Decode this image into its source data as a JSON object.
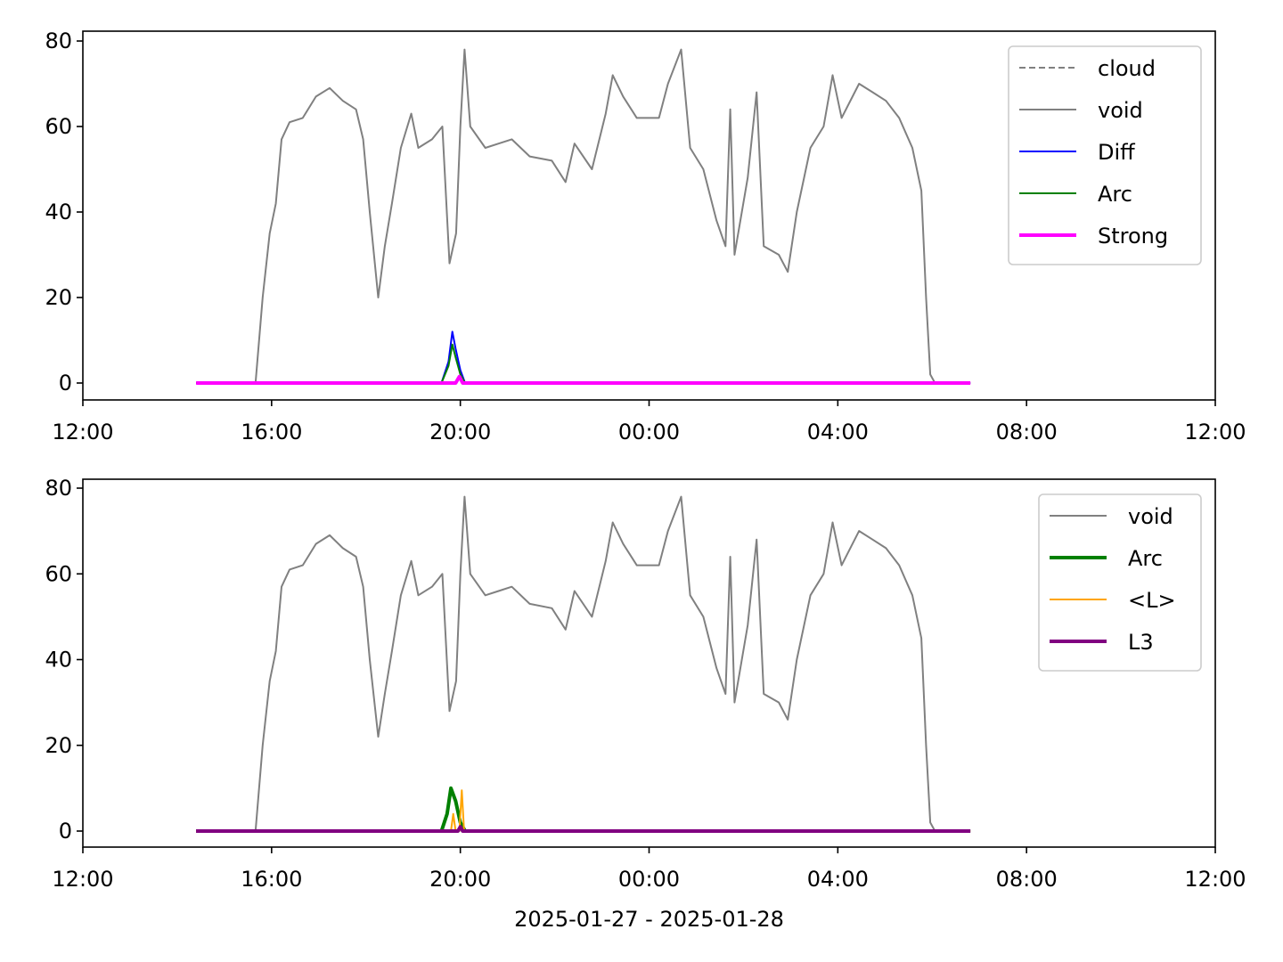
{
  "chart_data": [
    {
      "type": "line",
      "xlim": [
        0,
        24
      ],
      "xticks": [
        {
          "value": 0,
          "label": "12:00"
        },
        {
          "value": 4,
          "label": "16:00"
        },
        {
          "value": 8,
          "label": "20:00"
        },
        {
          "value": 12,
          "label": "00:00"
        },
        {
          "value": 16,
          "label": "04:00"
        },
        {
          "value": 20,
          "label": "08:00"
        },
        {
          "value": 24,
          "label": "12:00"
        }
      ],
      "ylim": [
        -3.96,
        82.3
      ],
      "yticks": [
        0,
        20,
        40,
        60,
        80
      ],
      "legend": "upper right",
      "series": [
        {
          "name": "cloud",
          "color": "#808080",
          "linewidth": 1,
          "linestyle": "dashed",
          "x": [],
          "values": []
        },
        {
          "name": "void",
          "color": "#808080",
          "linewidth": 1,
          "linestyle": "solid",
          "x": [
            2.4,
            3.66,
            3.81,
            3.96,
            4.09,
            4.21,
            4.38,
            4.66,
            4.94,
            5.23,
            5.51,
            5.79,
            5.94,
            6.08,
            6.26,
            6.4,
            6.55,
            6.74,
            6.96,
            7.11,
            7.4,
            7.62,
            7.77,
            7.91,
            8.0,
            8.09,
            8.21,
            8.53,
            8.81,
            9.09,
            9.47,
            9.94,
            10.23,
            10.42,
            10.79,
            11.08,
            11.23,
            11.45,
            11.74,
            12.21,
            12.4,
            12.68,
            12.87,
            13.15,
            13.43,
            13.62,
            13.72,
            13.81,
            14.09,
            14.28,
            14.43,
            14.75,
            14.94,
            15.13,
            15.42,
            15.7,
            15.89,
            16.08,
            16.45,
            16.74,
            17.02,
            17.3,
            17.58,
            17.77,
            17.87,
            17.96,
            18.06,
            18.81
          ],
          "values": [
            0,
            0,
            20,
            35,
            42,
            57,
            61,
            62,
            67,
            69,
            66,
            64,
            57,
            40,
            20,
            32,
            42,
            55,
            63,
            55,
            57,
            60,
            28,
            35,
            60,
            78,
            60,
            55,
            56,
            57,
            53,
            52,
            47,
            56,
            50,
            63,
            72,
            67,
            62,
            62,
            70,
            78,
            55,
            50,
            38,
            32,
            64,
            30,
            48,
            68,
            32,
            30,
            26,
            40,
            55,
            60,
            72,
            62,
            70,
            68,
            66,
            62,
            55,
            45,
            20,
            2,
            0,
            0
          ]
        },
        {
          "name": "Diff",
          "color": "#0000ff",
          "linewidth": 1,
          "linestyle": "solid",
          "x": [
            2.4,
            7.6,
            7.75,
            7.83,
            7.9,
            8.0,
            8.1,
            18.81
          ],
          "values": [
            0,
            0,
            5,
            12,
            8,
            3,
            0,
            0
          ]
        },
        {
          "name": "Arc",
          "color": "#008000",
          "linewidth": 1,
          "linestyle": "solid",
          "x": [
            2.4,
            7.6,
            7.75,
            7.83,
            7.9,
            8.0,
            8.1,
            18.81
          ],
          "values": [
            0,
            0,
            4,
            9,
            6,
            2,
            0,
            0
          ]
        },
        {
          "name": "Strong",
          "color": "#ff00ff",
          "linewidth": 2,
          "linestyle": "solid",
          "x": [
            2.4,
            7.9,
            7.98,
            8.05,
            18.81
          ],
          "values": [
            0,
            0,
            1.5,
            0,
            0
          ]
        }
      ]
    },
    {
      "type": "line",
      "xlabel": "2025-01-27 - 2025-01-28",
      "xlim": [
        0,
        24
      ],
      "xticks": [
        {
          "value": 0,
          "label": "12:00"
        },
        {
          "value": 4,
          "label": "16:00"
        },
        {
          "value": 8,
          "label": "20:00"
        },
        {
          "value": 12,
          "label": "00:00"
        },
        {
          "value": 16,
          "label": "04:00"
        },
        {
          "value": 20,
          "label": "08:00"
        },
        {
          "value": 24,
          "label": "12:00"
        }
      ],
      "ylim": [
        -3.74,
        82.08
      ],
      "yticks": [
        0,
        20,
        40,
        60,
        80
      ],
      "legend": "upper right",
      "series": [
        {
          "name": "void",
          "color": "#808080",
          "linewidth": 1,
          "linestyle": "solid",
          "x": [
            2.4,
            3.66,
            3.81,
            3.96,
            4.09,
            4.21,
            4.38,
            4.66,
            4.94,
            5.23,
            5.51,
            5.79,
            5.94,
            6.08,
            6.26,
            6.4,
            6.55,
            6.74,
            6.96,
            7.11,
            7.4,
            7.62,
            7.77,
            7.91,
            8.0,
            8.09,
            8.21,
            8.53,
            8.81,
            9.09,
            9.47,
            9.94,
            10.23,
            10.42,
            10.79,
            11.08,
            11.23,
            11.45,
            11.74,
            12.21,
            12.4,
            12.68,
            12.87,
            13.15,
            13.43,
            13.62,
            13.72,
            13.81,
            14.09,
            14.28,
            14.43,
            14.75,
            14.94,
            15.13,
            15.42,
            15.7,
            15.89,
            16.08,
            16.45,
            16.74,
            17.02,
            17.3,
            17.58,
            17.77,
            17.87,
            17.96,
            18.06,
            18.81
          ],
          "values": [
            0,
            0,
            20,
            35,
            42,
            57,
            61,
            62,
            67,
            69,
            66,
            64,
            57,
            40,
            22,
            32,
            42,
            55,
            63,
            55,
            57,
            60,
            28,
            35,
            60,
            78,
            60,
            55,
            56,
            57,
            53,
            52,
            47,
            56,
            50,
            63,
            72,
            67,
            62,
            62,
            70,
            78,
            55,
            50,
            38,
            32,
            64,
            30,
            48,
            68,
            32,
            30,
            26,
            40,
            55,
            60,
            72,
            62,
            70,
            68,
            66,
            62,
            55,
            45,
            20,
            2,
            0,
            0
          ]
        },
        {
          "name": "Arc",
          "color": "#008000",
          "linewidth": 2,
          "linestyle": "solid",
          "x": [
            2.4,
            7.6,
            7.72,
            7.8,
            7.9,
            8.0,
            8.1,
            18.81
          ],
          "values": [
            0,
            0,
            4,
            10,
            7,
            2,
            0,
            0
          ]
        },
        {
          "name": "<L>",
          "color": "#ffa500",
          "linewidth": 1,
          "linestyle": "solid",
          "x": [
            2.4,
            7.8,
            7.85,
            7.9,
            7.98,
            8.03,
            8.08,
            18.81
          ],
          "values": [
            0,
            0,
            4,
            0,
            0,
            9.5,
            0,
            0
          ]
        },
        {
          "name": "L3",
          "color": "#800080",
          "linewidth": 2,
          "linestyle": "solid",
          "x": [
            2.4,
            7.95,
            8.0,
            8.05,
            18.81
          ],
          "values": [
            0,
            0,
            1,
            0,
            0
          ]
        }
      ]
    }
  ]
}
